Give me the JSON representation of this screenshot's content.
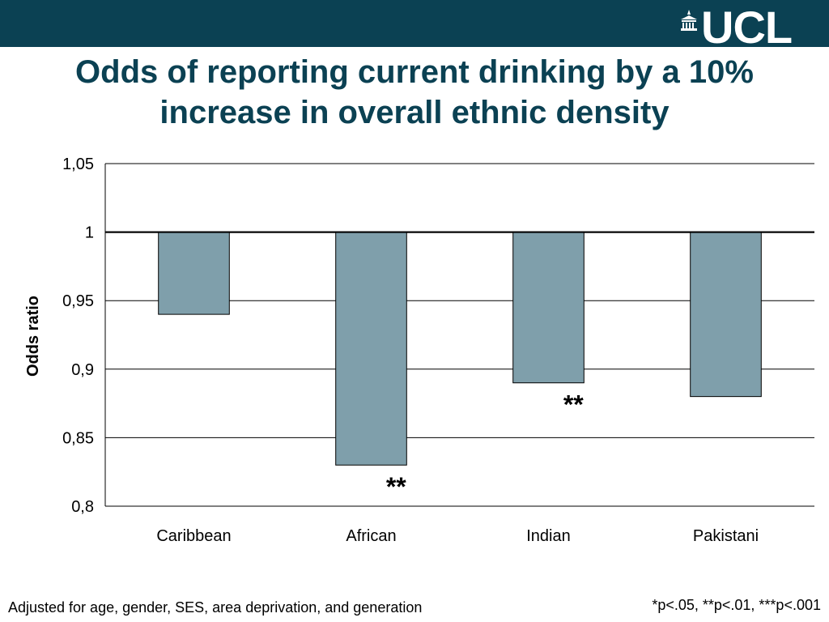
{
  "header": {
    "logo_text": "UCL",
    "brand_color": "#0b4153",
    "logo_icon": "portico-icon"
  },
  "title": {
    "line1": "Odds of reporting current drinking by a 10%",
    "line2": "increase in overall ethnic density"
  },
  "chart_data": {
    "type": "bar",
    "categories": [
      "Caribbean",
      "African",
      "Indian",
      "Pakistani"
    ],
    "values": [
      0.94,
      0.83,
      0.89,
      0.88
    ],
    "baseline": 1,
    "ylabel": "Odds ratio",
    "xlabel": "",
    "ylim": [
      0.8,
      1.05
    ],
    "yticks": [
      0.8,
      0.85,
      0.9,
      0.95,
      1,
      1.05
    ],
    "ytick_labels": [
      "0,8",
      "0,85",
      "0,9",
      "0,95",
      "1",
      "1,05"
    ],
    "grid": true,
    "bar_color": "#7f9fab",
    "annotations": [
      {
        "category": "African",
        "text": "**"
      },
      {
        "category": "Indian",
        "text": "**"
      }
    ]
  },
  "footnotes": {
    "left": "Adjusted for age, gender, SES, area deprivation, and generation",
    "right": "*p<.05, **p<.01, ***p<.001"
  }
}
